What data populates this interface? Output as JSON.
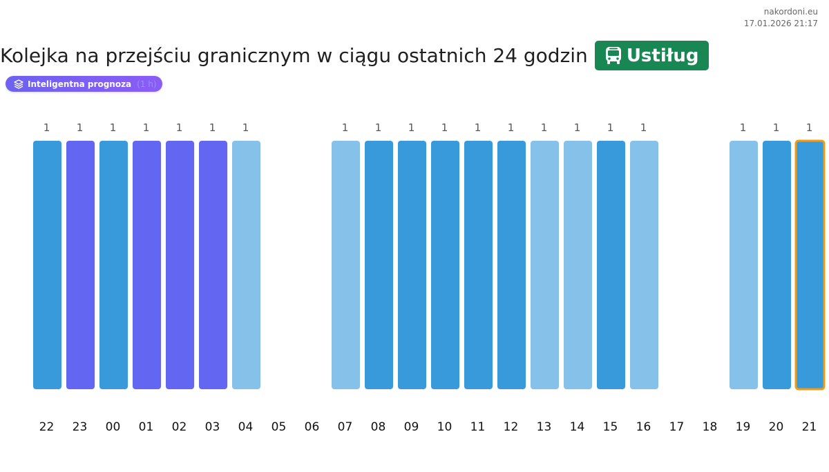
{
  "header": {
    "site": "nakordoni.eu",
    "timestamp": "17.01.2026 21:17",
    "title": "Kolejka na przejściu granicznym w ciągu ostatnich 24 godzin",
    "place": "Ustiług",
    "place_icon": "bus-icon",
    "badge_label": "Inteligentna prognoza",
    "badge_icon": "layers-icon",
    "badge_ghost": "(1 h)"
  },
  "colors": {
    "title_badge": "#198754",
    "ai_badge": "#7c5cf4",
    "bar_dark": "#3899db",
    "bar_light": "#85c1e9",
    "bar_purple": "#6366f1",
    "highlight_border": "#f39c12"
  },
  "chart_data": {
    "type": "bar",
    "categories": [
      "22",
      "23",
      "00",
      "01",
      "02",
      "03",
      "04",
      "05",
      "06",
      "07",
      "08",
      "09",
      "10",
      "11",
      "12",
      "13",
      "14",
      "15",
      "16",
      "17",
      "18",
      "19",
      "20",
      "21"
    ],
    "values": [
      1,
      1,
      1,
      1,
      1,
      1,
      1,
      null,
      null,
      1,
      1,
      1,
      1,
      1,
      1,
      1,
      1,
      1,
      1,
      null,
      null,
      1,
      1,
      1
    ],
    "bar_style": [
      "dark",
      "purple",
      "dark",
      "purple",
      "purple",
      "purple",
      "light",
      null,
      null,
      "light",
      "dark",
      "dark",
      "dark",
      "dark",
      "dark",
      "light",
      "light",
      "dark",
      "light",
      null,
      null,
      "light",
      "dark",
      "dark"
    ],
    "data_labels": [
      "1",
      "1",
      "1",
      "1",
      "1",
      "1",
      "1",
      "",
      "",
      "1",
      "1",
      "1",
      "1",
      "1",
      "1",
      "1",
      "1",
      "1",
      "1",
      "",
      "",
      "1",
      "1",
      "1"
    ],
    "highlight_index": 23,
    "title": "",
    "xlabel": "",
    "ylabel": "",
    "ylim": [
      0,
      1
    ],
    "grid": false,
    "legend": "none"
  }
}
